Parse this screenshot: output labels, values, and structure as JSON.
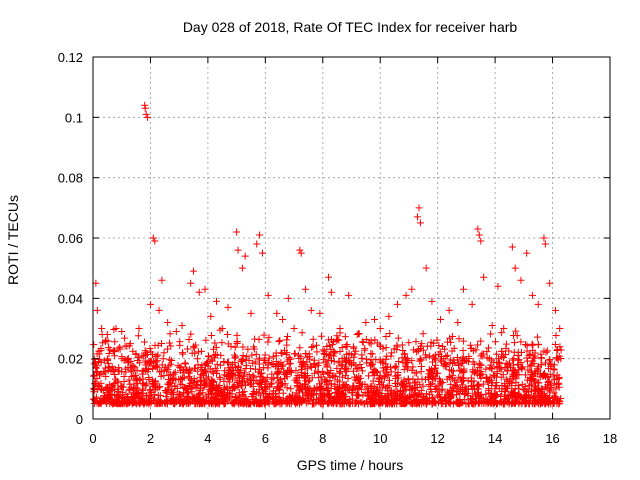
{
  "chart_data": {
    "type": "scatter",
    "title": "Day 028 of 2018, Rate Of TEC Index for receiver harb",
    "xlabel": "GPS time / hours",
    "ylabel": "ROTI / TECUs",
    "xlim": [
      0,
      18
    ],
    "ylim": [
      0,
      0.12
    ],
    "xticks": [
      0,
      2,
      4,
      6,
      8,
      10,
      12,
      14,
      16,
      18
    ],
    "yticks": [
      0,
      0.02,
      0.04,
      0.06,
      0.08,
      0.1,
      0.12
    ],
    "xtick_labels": [
      "0",
      "2",
      "4",
      "6",
      "8",
      "10",
      "12",
      "14",
      "16",
      "18"
    ],
    "ytick_labels": [
      "0",
      "0.02",
      "0.04",
      "0.06",
      "0.08",
      "0.1",
      "0.12"
    ],
    "grid": true,
    "marker": "+",
    "color": "#ff0000",
    "data_extent_hours": [
      0,
      16.3
    ],
    "typical_range": [
      0.005,
      0.03
    ],
    "series": [
      {
        "name": "ROTI",
        "points": [
          [
            0.1,
            0.045
          ],
          [
            0.15,
            0.036
          ],
          [
            0.3,
            0.03
          ],
          [
            0.5,
            0.028
          ],
          [
            0.8,
            0.03
          ],
          [
            1.0,
            0.029
          ],
          [
            1.3,
            0.025
          ],
          [
            1.6,
            0.03
          ],
          [
            1.8,
            0.104
          ],
          [
            1.82,
            0.103
          ],
          [
            1.85,
            0.101
          ],
          [
            1.9,
            0.1
          ],
          [
            2.0,
            0.038
          ],
          [
            2.1,
            0.06
          ],
          [
            2.15,
            0.059
          ],
          [
            2.3,
            0.036
          ],
          [
            2.4,
            0.046
          ],
          [
            2.6,
            0.032
          ],
          [
            2.9,
            0.029
          ],
          [
            3.1,
            0.031
          ],
          [
            3.4,
            0.045
          ],
          [
            3.5,
            0.049
          ],
          [
            3.7,
            0.042
          ],
          [
            3.9,
            0.043
          ],
          [
            4.1,
            0.034
          ],
          [
            4.3,
            0.039
          ],
          [
            4.5,
            0.03
          ],
          [
            4.7,
            0.037
          ],
          [
            5.0,
            0.062
          ],
          [
            5.05,
            0.056
          ],
          [
            5.2,
            0.05
          ],
          [
            5.3,
            0.054
          ],
          [
            5.5,
            0.035
          ],
          [
            5.7,
            0.058
          ],
          [
            5.8,
            0.061
          ],
          [
            5.9,
            0.055
          ],
          [
            6.1,
            0.041
          ],
          [
            6.4,
            0.035
          ],
          [
            6.6,
            0.033
          ],
          [
            6.8,
            0.04
          ],
          [
            7.0,
            0.03
          ],
          [
            7.2,
            0.056
          ],
          [
            7.25,
            0.055
          ],
          [
            7.4,
            0.043
          ],
          [
            7.6,
            0.036
          ],
          [
            7.9,
            0.035
          ],
          [
            8.2,
            0.047
          ],
          [
            8.3,
            0.042
          ],
          [
            8.6,
            0.03
          ],
          [
            8.9,
            0.041
          ],
          [
            9.2,
            0.028
          ],
          [
            9.5,
            0.032
          ],
          [
            9.8,
            0.033
          ],
          [
            10.0,
            0.03
          ],
          [
            10.3,
            0.034
          ],
          [
            10.6,
            0.038
          ],
          [
            10.9,
            0.041
          ],
          [
            11.1,
            0.043
          ],
          [
            11.3,
            0.067
          ],
          [
            11.35,
            0.07
          ],
          [
            11.4,
            0.065
          ],
          [
            11.6,
            0.05
          ],
          [
            11.8,
            0.039
          ],
          [
            12.1,
            0.033
          ],
          [
            12.4,
            0.036
          ],
          [
            12.7,
            0.032
          ],
          [
            12.9,
            0.043
          ],
          [
            13.2,
            0.038
          ],
          [
            13.4,
            0.063
          ],
          [
            13.45,
            0.061
          ],
          [
            13.5,
            0.059
          ],
          [
            13.6,
            0.047
          ],
          [
            13.9,
            0.031
          ],
          [
            14.1,
            0.044
          ],
          [
            14.3,
            0.03
          ],
          [
            14.6,
            0.057
          ],
          [
            14.7,
            0.05
          ],
          [
            14.9,
            0.046
          ],
          [
            15.1,
            0.055
          ],
          [
            15.3,
            0.041
          ],
          [
            15.5,
            0.038
          ],
          [
            15.7,
            0.06
          ],
          [
            15.75,
            0.058
          ],
          [
            15.9,
            0.045
          ],
          [
            16.1,
            0.036
          ],
          [
            16.25,
            0.03
          ]
        ]
      }
    ]
  }
}
